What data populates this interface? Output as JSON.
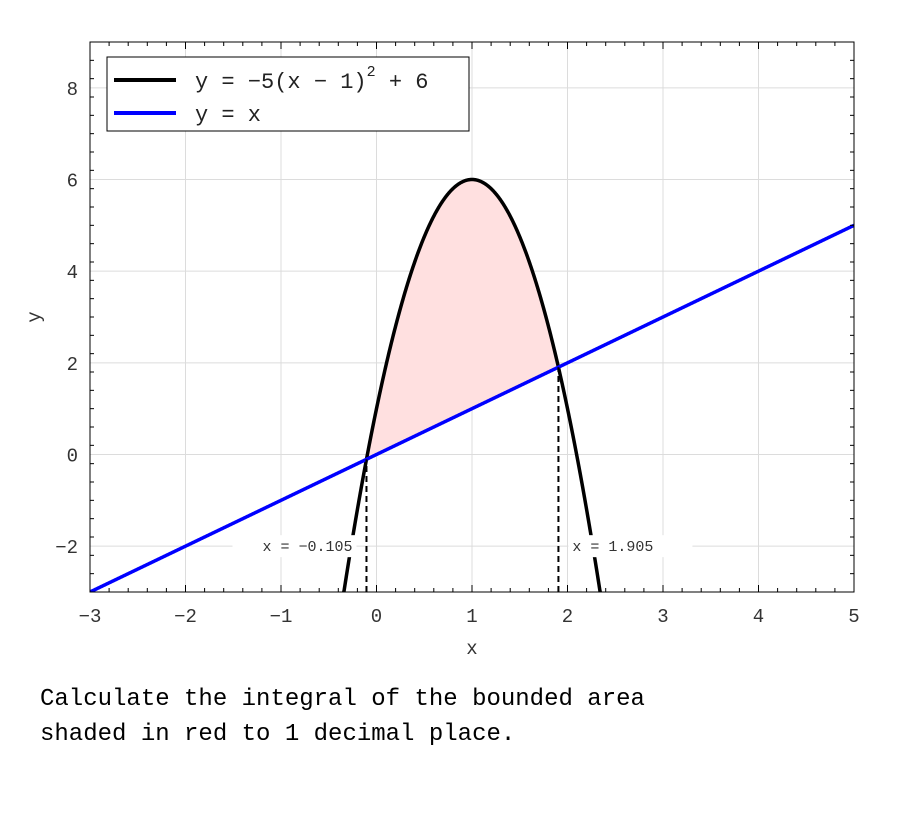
{
  "chart_data": {
    "type": "line",
    "xlabel": "x",
    "ylabel": "y",
    "xlim": [
      -3,
      5
    ],
    "ylim": [
      -3,
      9
    ],
    "xticks": [
      -3,
      -2,
      -1,
      0,
      1,
      2,
      3,
      4,
      5
    ],
    "yticks": [
      -2,
      0,
      2,
      4,
      6,
      8
    ],
    "xtick_labels": [
      "−3",
      "−2",
      "−1",
      "0",
      "1",
      "2",
      "3",
      "4",
      "5"
    ],
    "ytick_labels": [
      "−2",
      "0",
      "2",
      "4",
      "6",
      "8"
    ],
    "grid": true,
    "legend_position": "top-left",
    "series": [
      {
        "name": "y = -5(x - 1)^2 + 6",
        "legend_main": "y = −5(x − 1)",
        "legend_sup": "2",
        "legend_tail": " + 6",
        "function": "-5*(x-1)^2+6",
        "color": "#000000"
      },
      {
        "name": "y = x",
        "legend_main": "y = x",
        "function": "x",
        "color": "#0000ff"
      }
    ],
    "shaded_region": {
      "x_from": -0.105,
      "x_to": 1.905,
      "fill": "#ffe0e0",
      "edge": "#d03030"
    },
    "annotations": [
      {
        "x": -0.105,
        "label": "x = −0.105"
      },
      {
        "x": 1.905,
        "label": "x = 1.905"
      }
    ]
  },
  "question": "Calculate the integral of the bounded area\nshaded in red to 1 decimal place."
}
